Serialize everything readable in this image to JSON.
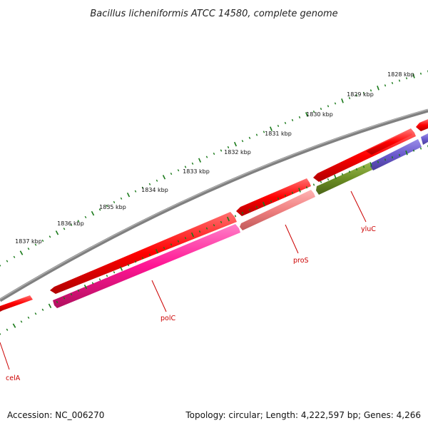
{
  "title": "Bacillus licheniformis ATCC 14580, complete genome",
  "footer": {
    "accession": "Accession: NC_006270",
    "topology": "Topology: circular; Length: 4,222,597 bp; Genes: 4,266"
  },
  "kbp_ticks": [
    "1828 kbp",
    "1829 kbp",
    "1830 kbp",
    "1831 kbp",
    "1832 kbp",
    "1833 kbp",
    "1834 kbp",
    "1835 kbp",
    "1836 kbp",
    "1837 kbp"
  ],
  "genes": [
    {
      "name": "celA",
      "color": "#ff0000"
    },
    {
      "name": "polC",
      "color": "#ff1493"
    },
    {
      "name": "proS",
      "color": "#f08080"
    },
    {
      "name": "yluC",
      "color": "#6b8e23"
    }
  ],
  "colors": {
    "backbone": "#808080",
    "cds_forward": "#ff0000",
    "tick_green": "#1a7a1a",
    "unlabeled_blue": "#6a5acd"
  }
}
